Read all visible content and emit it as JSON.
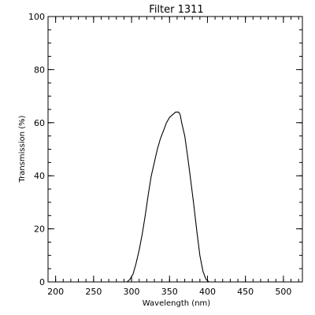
{
  "chart_data": {
    "type": "line",
    "title": "Filter 1311",
    "xlabel": "Wavelength (nm)",
    "ylabel": "Transmission (%)",
    "xlim": [
      190,
      525
    ],
    "ylim": [
      0,
      100
    ],
    "grid": false,
    "x_ticks": [
      200,
      250,
      300,
      350,
      400,
      450,
      500
    ],
    "y_ticks": [
      0,
      20,
      40,
      60,
      80,
      100
    ],
    "x_minor_step": 10,
    "y_minor_step": 5,
    "series": [
      {
        "x": [
          290,
          294,
          298,
          302,
          306,
          310,
          314,
          318,
          322,
          326,
          330,
          334,
          338,
          342,
          346,
          350,
          354,
          358,
          362,
          364,
          366,
          370,
          374,
          378,
          382,
          386,
          390,
          394,
          398,
          402,
          406
        ],
        "y": [
          0,
          0,
          1,
          3,
          7,
          12,
          18,
          25,
          33,
          40,
          45,
          50,
          54,
          57,
          60,
          62,
          63,
          64,
          64,
          63,
          60,
          55,
          47,
          38,
          29,
          19,
          10,
          4,
          1,
          0,
          0
        ]
      }
    ]
  }
}
